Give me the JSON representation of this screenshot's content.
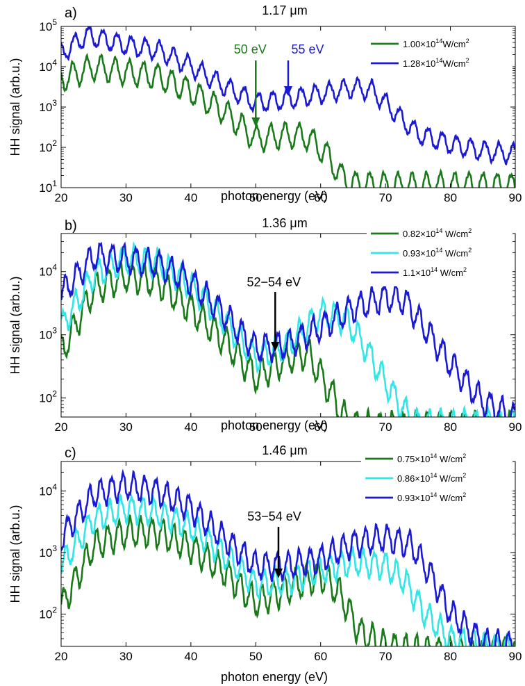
{
  "chart_data": [
    {
      "type": "line",
      "panel_label": "a)",
      "title": "1.17 μm",
      "xlabel": "photon energy (eV)",
      "ylabel": "HH signal (arb.u.)",
      "xlim": [
        20,
        90
      ],
      "ylim": [
        10,
        100000
      ],
      "yscale": "log",
      "xticks": [
        "20",
        "30",
        "40",
        "50",
        "60",
        "70",
        "80",
        "90"
      ],
      "yticks": [
        {
          "value": 10,
          "base": "10",
          "exp": "1"
        },
        {
          "value": 100,
          "base": "10",
          "exp": "2"
        },
        {
          "value": 1000,
          "base": "10",
          "exp": "3"
        },
        {
          "value": 10000,
          "base": "10",
          "exp": "4"
        },
        {
          "value": 100000,
          "base": "10",
          "exp": "5"
        }
      ],
      "legend_position": "top-right",
      "series": [
        {
          "name_pre": "1.00×10",
          "name_exp": "14",
          "name_post": "W/cm",
          "name_sup2": "2",
          "color": "#1a7a1a",
          "x": [
            20,
            25,
            30,
            35,
            40,
            45,
            50,
            55,
            58,
            61,
            63,
            65,
            70,
            75,
            80,
            85,
            90
          ],
          "y": [
            6000,
            12000,
            9000,
            7000,
            3000,
            1000,
            200,
            250,
            220,
            80,
            25,
            15,
            14,
            14,
            14,
            14,
            13
          ],
          "spacing": 2.18,
          "mod_db": 0.6
        },
        {
          "name_pre": "1.28×10",
          "name_exp": "14",
          "name_post": "W/cm",
          "name_sup2": "2",
          "color": "#1a1ad4",
          "x": [
            20,
            24,
            30,
            35,
            40,
            45,
            50,
            55,
            60,
            65,
            68,
            72,
            75,
            80,
            85,
            90
          ],
          "y": [
            25000,
            70000,
            40000,
            30000,
            12000,
            4000,
            1500,
            1800,
            2500,
            3500,
            3000,
            700,
            250,
            140,
            95,
            80
          ],
          "spacing": 2.18,
          "mod_db": 0.45
        }
      ],
      "annotations": [
        {
          "text": "50 eV",
          "x": 50,
          "color": "#1a7a1a"
        },
        {
          "text": "55 eV",
          "x": 55,
          "color": "#1a1ad4"
        }
      ]
    },
    {
      "type": "line",
      "panel_label": "b)",
      "title": "1.36 μm",
      "xlabel": "photon energy (eV)",
      "ylabel": "HH signal (arb.u.)",
      "xlim": [
        20,
        90
      ],
      "ylim": [
        50,
        40000
      ],
      "yscale": "log",
      "xticks": [
        "20",
        "30",
        "40",
        "50",
        "60",
        "70",
        "80",
        "90"
      ],
      "yticks": [
        {
          "value": 100,
          "base": "10",
          "exp": "2"
        },
        {
          "value": 1000,
          "base": "10",
          "exp": "3"
        },
        {
          "value": 10000,
          "base": "10",
          "exp": "4"
        }
      ],
      "legend_position": "top-right",
      "series": [
        {
          "name_pre": "0.82×10",
          "name_exp": "14",
          "name_post": " W/cm",
          "name_sup2": "2",
          "color": "#1a7a1a",
          "x": [
            20,
            25,
            30,
            35,
            40,
            45,
            50,
            55,
            58,
            62,
            64,
            66
          ],
          "y": [
            600,
            6000,
            10000,
            8000,
            3000,
            1000,
            250,
            500,
            600,
            120,
            50,
            40
          ],
          "spacing": 1.82,
          "mod_db": 0.45
        },
        {
          "name_pre": "0.93×10",
          "name_exp": "14",
          "name_post": " W/cm",
          "name_sup2": "2",
          "color": "#33e6e6",
          "x": [
            20,
            25,
            30,
            35,
            40,
            45,
            50,
            55,
            60,
            64,
            67,
            70,
            73,
            75
          ],
          "y": [
            1500,
            10000,
            18000,
            16000,
            7000,
            2000,
            500,
            800,
            2500,
            2000,
            700,
            200,
            70,
            45
          ],
          "spacing": 1.82,
          "mod_db": 0.4
        },
        {
          "name_pre": "1.1×10",
          "name_exp": "14",
          "name_post": " W/cm",
          "name_sup2": "2",
          "color": "#1a1ad4",
          "x": [
            20,
            25,
            30,
            35,
            40,
            45,
            50,
            55,
            60,
            65,
            70,
            73,
            76,
            80,
            85,
            90
          ],
          "y": [
            5000,
            20000,
            18000,
            15000,
            8000,
            2500,
            700,
            800,
            1500,
            3000,
            4500,
            4000,
            1500,
            400,
            100,
            55
          ],
          "spacing": 1.82,
          "mod_db": 0.4
        }
      ],
      "annotations": [
        {
          "text": "52−54 eV",
          "x": 53,
          "color": "#000000"
        }
      ]
    },
    {
      "type": "line",
      "panel_label": "c)",
      "title": "1.46 μm",
      "xlabel": "photon energy (eV)",
      "ylabel": "HH signal (arb.u.)",
      "xlim": [
        20,
        90
      ],
      "ylim": [
        30,
        30000
      ],
      "yscale": "log",
      "xticks": [
        "20",
        "30",
        "40",
        "50",
        "60",
        "70",
        "80",
        "90"
      ],
      "yticks": [
        {
          "value": 100,
          "base": "10",
          "exp": "2"
        },
        {
          "value": 1000,
          "base": "10",
          "exp": "3"
        },
        {
          "value": 10000,
          "base": "10",
          "exp": "4"
        }
      ],
      "legend_position": "top-right",
      "series": [
        {
          "name_pre": "0.75×10",
          "name_exp": "14",
          "name_post": " W/cm",
          "name_sup2": "2",
          "color": "#1a7a1a",
          "x": [
            20,
            25,
            30,
            35,
            40,
            45,
            50,
            55,
            60,
            63,
            66,
            70,
            75,
            80
          ],
          "y": [
            150,
            1500,
            2500,
            2500,
            1400,
            600,
            180,
            300,
            500,
            250,
            60,
            35,
            30,
            28
          ],
          "spacing": 1.7,
          "mod_db": 0.45
        },
        {
          "name_pre": "0.86×10",
          "name_exp": "14",
          "name_post": " W/cm",
          "name_sup2": "2",
          "color": "#33e6e6",
          "x": [
            20,
            25,
            30,
            35,
            40,
            45,
            50,
            55,
            60,
            65,
            70,
            73,
            76,
            80,
            85,
            90
          ],
          "y": [
            700,
            4000,
            6000,
            5000,
            3000,
            1100,
            350,
            400,
            600,
            800,
            700,
            400,
            120,
            45,
            35,
            32
          ],
          "spacing": 1.7,
          "mod_db": 0.4
        },
        {
          "name_pre": "0.93×10",
          "name_exp": "14",
          "name_post": " W/cm",
          "name_sup2": "2",
          "color": "#1a1ad4",
          "x": [
            20,
            25,
            30,
            35,
            40,
            45,
            50,
            55,
            60,
            65,
            70,
            74,
            77,
            80,
            85,
            90
          ],
          "y": [
            2000,
            10000,
            14000,
            11000,
            6000,
            2000,
            700,
            700,
            900,
            1600,
            2000,
            1500,
            500,
            120,
            40,
            35
          ],
          "spacing": 1.7,
          "mod_db": 0.4
        }
      ],
      "annotations": [
        {
          "text": "53−54 eV",
          "x": 53.5,
          "color": "#000000"
        }
      ]
    }
  ]
}
